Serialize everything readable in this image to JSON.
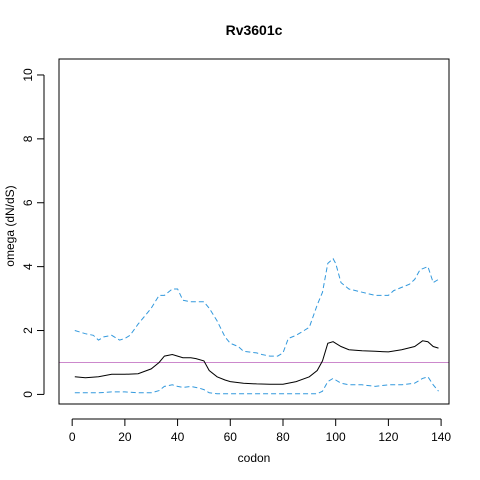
{
  "chart_data": {
    "type": "line",
    "title": "Rv3601c",
    "xlabel": "codon",
    "ylabel": "omega (dN/dS)",
    "xlim": [
      -5,
      143
    ],
    "ylim": [
      -0.3,
      10.5
    ],
    "xticks": [
      0,
      20,
      40,
      60,
      80,
      100,
      120,
      140
    ],
    "yticks": [
      0,
      2,
      4,
      6,
      8,
      10
    ],
    "grid": false,
    "reference_line": {
      "y": 1,
      "color": "#cc88cc"
    },
    "colors": {
      "omega": "#000000",
      "bounds": "#3399dd"
    },
    "series": [
      {
        "name": "",
        "role": "omega",
        "x": [
          1,
          5,
          10,
          15,
          20,
          25,
          30,
          33,
          35,
          38,
          40,
          42,
          45,
          47,
          50,
          52,
          55,
          58,
          60,
          65,
          70,
          75,
          80,
          85,
          90,
          93,
          95,
          97,
          99,
          100,
          102,
          105,
          110,
          115,
          120,
          125,
          130,
          133,
          135,
          137,
          139
        ],
        "y": [
          0.55,
          0.52,
          0.55,
          0.63,
          0.63,
          0.65,
          0.8,
          1.0,
          1.2,
          1.25,
          1.2,
          1.15,
          1.15,
          1.12,
          1.05,
          0.75,
          0.55,
          0.45,
          0.4,
          0.35,
          0.33,
          0.32,
          0.32,
          0.4,
          0.55,
          0.75,
          1.05,
          1.6,
          1.65,
          1.6,
          1.5,
          1.4,
          1.37,
          1.35,
          1.33,
          1.4,
          1.5,
          1.68,
          1.65,
          1.5,
          1.45
        ]
      },
      {
        "name": "",
        "role": "upper",
        "x": [
          1,
          3,
          5,
          8,
          10,
          12,
          15,
          18,
          20,
          22,
          25,
          28,
          30,
          33,
          35,
          38,
          40,
          42,
          45,
          48,
          50,
          52,
          55,
          58,
          60,
          63,
          65,
          70,
          72,
          75,
          78,
          80,
          82,
          85,
          88,
          90,
          93,
          95,
          97,
          99,
          100,
          102,
          105,
          110,
          115,
          120,
          122,
          125,
          128,
          130,
          132,
          135,
          137,
          139
        ],
        "y": [
          2.0,
          1.95,
          1.9,
          1.85,
          1.7,
          1.8,
          1.85,
          1.7,
          1.75,
          1.85,
          2.2,
          2.5,
          2.7,
          3.1,
          3.1,
          3.3,
          3.3,
          2.95,
          2.9,
          2.9,
          2.9,
          2.7,
          2.3,
          1.8,
          1.6,
          1.5,
          1.35,
          1.3,
          1.25,
          1.2,
          1.2,
          1.3,
          1.75,
          1.85,
          2.0,
          2.1,
          2.8,
          3.2,
          4.1,
          4.25,
          4.1,
          3.5,
          3.3,
          3.2,
          3.1,
          3.1,
          3.25,
          3.35,
          3.45,
          3.6,
          3.9,
          4.0,
          3.5,
          3.6
        ]
      },
      {
        "name": "",
        "role": "lower",
        "x": [
          1,
          5,
          10,
          15,
          20,
          25,
          30,
          33,
          35,
          38,
          40,
          42,
          45,
          48,
          50,
          52,
          55,
          58,
          60,
          65,
          70,
          75,
          80,
          85,
          90,
          93,
          95,
          97,
          99,
          100,
          102,
          105,
          110,
          115,
          120,
          125,
          130,
          133,
          135,
          137,
          139
        ],
        "y": [
          0.05,
          0.05,
          0.05,
          0.08,
          0.08,
          0.05,
          0.05,
          0.12,
          0.25,
          0.3,
          0.25,
          0.22,
          0.25,
          0.2,
          0.15,
          0.05,
          0.02,
          0.02,
          0.02,
          0.02,
          0.02,
          0.02,
          0.02,
          0.02,
          0.02,
          0.02,
          0.1,
          0.4,
          0.5,
          0.45,
          0.35,
          0.3,
          0.3,
          0.25,
          0.3,
          0.3,
          0.35,
          0.5,
          0.55,
          0.3,
          0.1
        ]
      }
    ]
  }
}
